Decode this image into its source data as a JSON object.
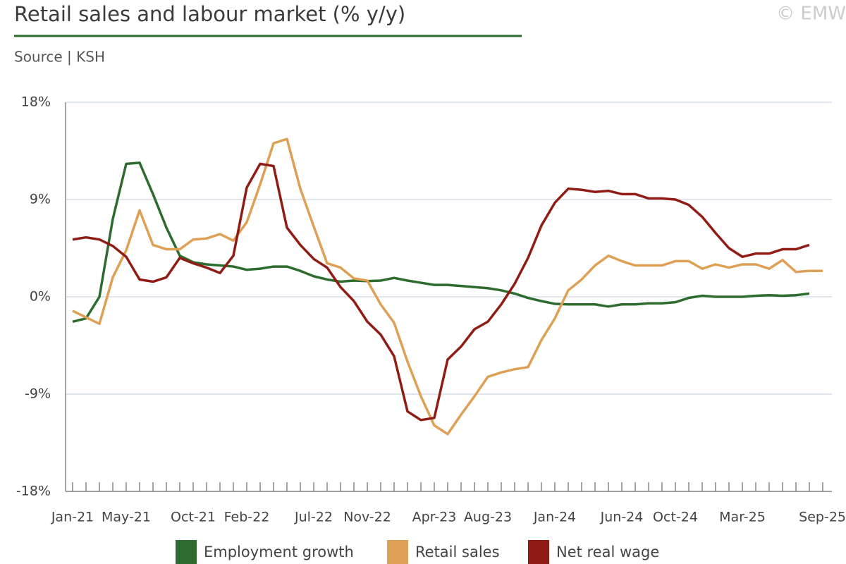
{
  "chart_data": {
    "type": "line",
    "title": "Retail sales and labour market (% y/y)",
    "subtitle": "Source | KSH",
    "watermark": "© EMW",
    "categories": [
      "Jan-21",
      null,
      null,
      null,
      "May-21",
      null,
      null,
      null,
      null,
      "Oct-21",
      null,
      null,
      null,
      "Feb-22",
      null,
      null,
      null,
      null,
      "Jul-22",
      null,
      null,
      null,
      "Nov-22",
      null,
      null,
      null,
      null,
      "Apr-23",
      null,
      null,
      null,
      "Aug-23",
      null,
      null,
      null,
      null,
      "Jan-24",
      null,
      null,
      null,
      null,
      "Jun-24",
      null,
      null,
      null,
      "Oct-24",
      null,
      null,
      null,
      null,
      "Mar-25",
      null,
      null,
      null,
      null,
      null,
      "Sep-25"
    ],
    "series": [
      {
        "name": "Employment growth",
        "color": "#2e6b2f",
        "values": [
          -2.3,
          -2.0,
          0.0,
          7.2,
          12.3,
          12.4,
          9.5,
          6.4,
          3.8,
          3.2,
          3.0,
          2.9,
          2.8,
          2.5,
          2.6,
          2.8,
          2.8,
          2.4,
          1.9,
          1.6,
          1.4,
          1.5,
          1.45,
          1.5,
          1.75,
          1.5,
          1.3,
          1.1,
          1.1,
          1.0,
          0.9,
          0.8,
          0.6,
          0.3,
          -0.1,
          -0.4,
          -0.65,
          -0.7,
          -0.7,
          -0.7,
          -0.9,
          -0.7,
          -0.7,
          -0.6,
          -0.6,
          -0.5,
          -0.1,
          0.1,
          0.0,
          0.0,
          0.0,
          0.1,
          0.15,
          0.1,
          0.15,
          0.3,
          null
        ]
      },
      {
        "name": "Retail sales",
        "color": "#dda055",
        "values": [
          -1.3,
          -1.9,
          -2.5,
          1.8,
          4.3,
          8.0,
          4.8,
          4.4,
          4.4,
          5.3,
          5.4,
          5.8,
          5.2,
          6.9,
          10.4,
          14.2,
          14.6,
          10.0,
          6.5,
          3.1,
          2.7,
          1.7,
          1.5,
          -0.7,
          -2.4,
          -6.0,
          -9.2,
          -11.9,
          -12.7,
          -10.9,
          -9.2,
          -7.4,
          -7.0,
          -6.7,
          -6.5,
          -4.0,
          -2.0,
          0.6,
          1.6,
          2.9,
          3.8,
          3.3,
          2.9,
          2.9,
          2.9,
          3.3,
          3.3,
          2.6,
          3.0,
          2.7,
          3.0,
          3.0,
          2.6,
          3.4,
          2.3,
          2.4,
          2.4
        ]
      },
      {
        "name": "Net real wage",
        "color": "#8f1d15",
        "values": [
          5.3,
          5.5,
          5.3,
          4.7,
          3.7,
          1.6,
          1.4,
          1.8,
          3.6,
          3.1,
          2.7,
          2.2,
          3.8,
          10.1,
          12.3,
          12.1,
          6.4,
          4.8,
          3.5,
          2.7,
          0.9,
          -0.4,
          -2.3,
          -3.5,
          -5.5,
          -10.6,
          -11.4,
          -11.2,
          -5.8,
          -4.6,
          -3.0,
          -2.3,
          -0.7,
          1.2,
          3.6,
          6.6,
          8.7,
          10.0,
          9.9,
          9.7,
          9.8,
          9.5,
          9.5,
          9.1,
          9.1,
          9.0,
          8.5,
          7.4,
          5.9,
          4.5,
          3.7,
          4.0,
          4.0,
          4.4,
          4.4,
          4.8,
          null
        ]
      }
    ],
    "ylim": [
      -18,
      18
    ],
    "yticks": [
      {
        "value": -18,
        "label": "-18%"
      },
      {
        "value": -9,
        "label": "-9%"
      },
      {
        "value": 0,
        "label": "0%"
      },
      {
        "value": 9,
        "label": "9%"
      },
      {
        "value": 18,
        "label": "18%"
      }
    ],
    "grid": true,
    "legend": "bottom"
  }
}
